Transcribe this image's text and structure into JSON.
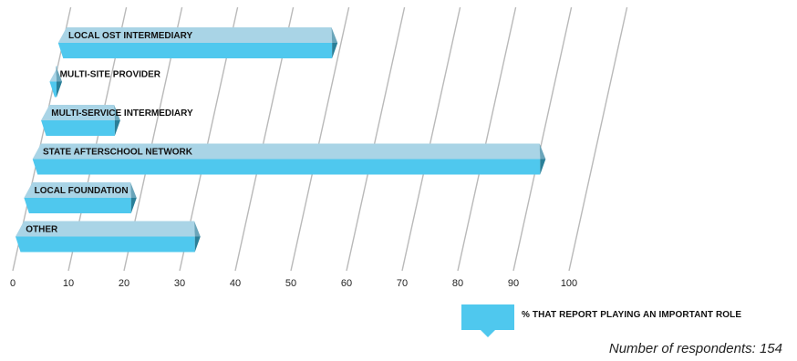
{
  "chart_data": {
    "type": "bar",
    "orientation": "horizontal",
    "categories": [
      "LOCAL OST INTERMEDIARY",
      "MULTI-SITE PROVIDER",
      "MULTI-SERVICE INTERMEDIARY",
      "STATE AFTERSCHOOL NETWORK",
      "LOCAL FOUNDATION",
      "OTHER"
    ],
    "series": [
      {
        "name": "% THAT REPORT PLAYING AN IMPORTANT ROLE",
        "values": [
          49,
          1,
          13,
          91,
          19,
          32
        ]
      }
    ],
    "xlim": [
      0,
      100
    ],
    "xticks": [
      0,
      10,
      20,
      30,
      40,
      50,
      60,
      70,
      80,
      90,
      100
    ],
    "grid": true,
    "legend": "bottom-right",
    "colors": {
      "bar_front": "#4fc8ee",
      "bar_top": "#a9d4e6",
      "bar_end": "#2a7f98",
      "bar_end_top": "#6aa5ba",
      "grid": "#b9b9b9"
    }
  },
  "legend_label": "% THAT REPORT PLAYING AN IMPORTANT ROLE",
  "note": "Number of respondents: 154"
}
